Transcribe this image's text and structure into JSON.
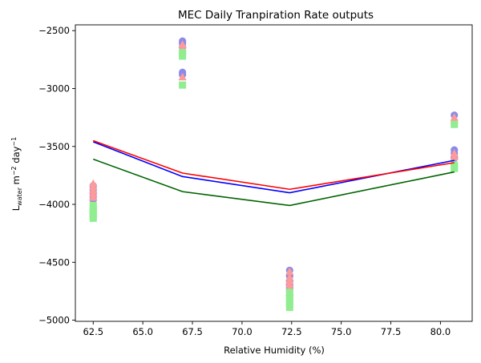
{
  "chart_data": {
    "type": "scatter",
    "title": "MEC Daily Tranpiration Rate outputs",
    "xlabel": "Relative Humidity (%)",
    "ylabel": {
      "prefix": "L",
      "sub": "water",
      "mid": " m",
      "sup1": "−2",
      "mid2": " day",
      "sup2": "−1"
    },
    "xlim": [
      61.6,
      81.6
    ],
    "ylim": [
      -5010,
      -2450
    ],
    "xticks": [
      62.5,
      65.0,
      67.5,
      70.0,
      72.5,
      75.0,
      77.5,
      80.0
    ],
    "xtick_labels": [
      "62.5",
      "65.0",
      "67.5",
      "70.0",
      "72.5",
      "75.0",
      "77.5",
      "80.0"
    ],
    "yticks": [
      -5000,
      -4500,
      -4000,
      -3500,
      -3000,
      -2500
    ],
    "ytick_labels": [
      "−5000",
      "−4500",
      "−4000",
      "−3500",
      "−3000",
      "−2500"
    ],
    "grid": false,
    "lines": [
      {
        "color": "#0000ff",
        "x": [
          62.5,
          67.0,
          72.4,
          80.7
        ],
        "y": [
          -3460,
          -3760,
          -3900,
          -3620
        ]
      },
      {
        "color": "#ff0000",
        "x": [
          62.5,
          67.0,
          72.4,
          80.7
        ],
        "y": [
          -3450,
          -3730,
          -3870,
          -3640
        ]
      },
      {
        "color": "#006400",
        "x": [
          62.5,
          67.0,
          72.4,
          80.7
        ],
        "y": [
          -3610,
          -3890,
          -4010,
          -3720
        ]
      }
    ],
    "scatter_series": [
      {
        "marker": "circle",
        "color": "#8c8ce8",
        "x": [
          62.5,
          62.5,
          62.5,
          62.5,
          62.5,
          67.0,
          67.0,
          67.0,
          67.0,
          67.0,
          72.4,
          72.4,
          72.4,
          72.4,
          72.4,
          80.7,
          80.7,
          80.7,
          80.7
        ],
        "y": [
          -3840,
          -3870,
          -3900,
          -3930,
          -3960,
          -2590,
          -2610,
          -2640,
          -2860,
          -2880,
          -4570,
          -4620,
          -4660,
          -4700,
          -4730,
          -3230,
          -3530,
          -3560,
          -3600
        ]
      },
      {
        "marker": "triangle",
        "color": "#ff9a9a",
        "x": [
          62.5,
          62.5,
          62.5,
          62.5,
          62.5,
          67.0,
          67.0,
          67.0,
          67.0,
          72.4,
          72.4,
          72.4,
          72.4,
          72.4,
          72.4,
          80.7,
          80.7,
          80.7,
          80.7
        ],
        "y": [
          -3820,
          -3850,
          -3880,
          -3910,
          -3940,
          -2620,
          -2650,
          -2670,
          -2900,
          -4580,
          -4630,
          -4660,
          -4690,
          -4720,
          -4760,
          -3250,
          -3270,
          -3560,
          -3590
        ]
      },
      {
        "marker": "square",
        "color": "#90ee90",
        "x": [
          62.5,
          62.5,
          62.5,
          62.5,
          62.5,
          62.5,
          67.0,
          67.0,
          67.0,
          72.4,
          72.4,
          72.4,
          72.4,
          72.4,
          72.4,
          80.7,
          80.7,
          80.7
        ],
        "y": [
          -4010,
          -4040,
          -4060,
          -4080,
          -4100,
          -4120,
          -2690,
          -2720,
          -2970,
          -4760,
          -4790,
          -4810,
          -4840,
          -4860,
          -4890,
          -3310,
          -3660,
          -3690
        ]
      }
    ]
  }
}
